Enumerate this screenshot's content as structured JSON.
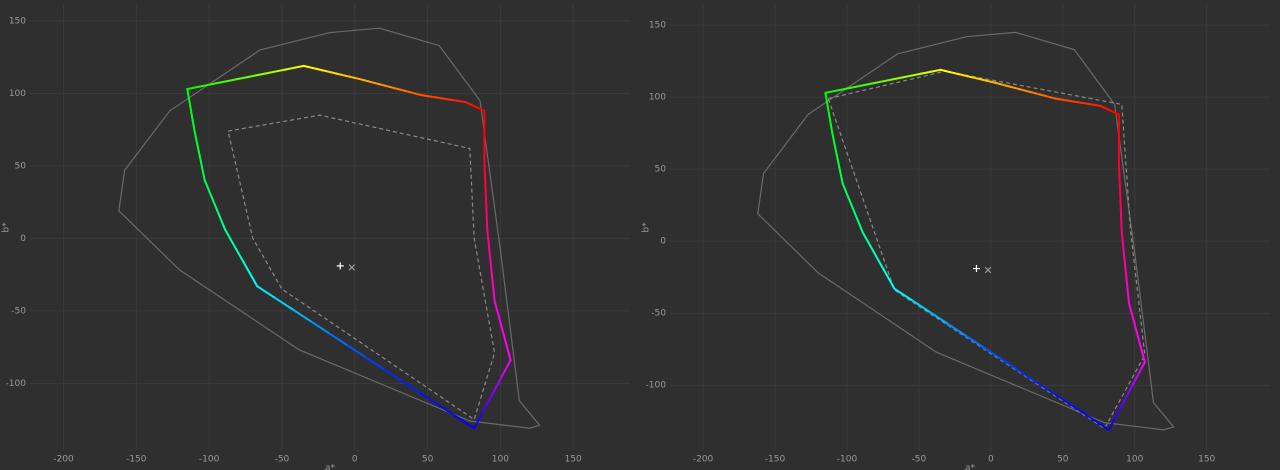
{
  "chart_data": [
    {
      "type": "line",
      "xlabel": "a*",
      "ylabel": "b*",
      "grid": true,
      "xlim": [
        -223,
        189
      ],
      "ylim": [
        -146,
        161
      ],
      "xticks": [
        -200,
        -150,
        -100,
        -50,
        0,
        50,
        100,
        150
      ],
      "yticks": [
        -100,
        -50,
        0,
        50,
        100,
        150
      ],
      "series": [
        {
          "style": "outline",
          "color": "#6a6a6a",
          "x": [
            17,
            58,
            86,
            100,
            113,
            127,
            120,
            79,
            -38,
            -120,
            -162,
            -158,
            -127,
            -65,
            -17,
            17
          ],
          "values": [
            145,
            133,
            95,
            -8,
            -112,
            -129,
            -131,
            -126,
            -77,
            -22,
            19,
            47,
            88,
            130,
            142,
            145
          ]
        },
        {
          "style": "dashed",
          "color": "#8a8a8a",
          "x": [
            -87,
            -24,
            79,
            82,
            96,
            82,
            -50,
            -70,
            -87
          ],
          "values": [
            74,
            85,
            62,
            0,
            -79,
            -125,
            -35,
            0,
            74
          ]
        },
        {
          "style": "hue",
          "x": [
            -115,
            -110,
            -103,
            -89,
            -67,
            82,
            107,
            96,
            91,
            89,
            89,
            76,
            45,
            3,
            -35,
            -115
          ],
          "values": [
            103,
            74,
            40,
            6,
            -33,
            -131,
            -84,
            -43,
            6,
            54,
            88,
            94,
            99,
            110,
            119,
            103
          ]
        },
        {
          "style": "plus",
          "color": "#ffffff",
          "x": [
            -10
          ],
          "values": [
            -19
          ]
        },
        {
          "style": "cross",
          "color": "#9a9a9a",
          "x": [
            -2
          ],
          "values": [
            -20
          ]
        }
      ]
    },
    {
      "type": "line",
      "xlabel": "a*",
      "ylabel": "b*",
      "grid": true,
      "xlim": [
        -223,
        194
      ],
      "ylim": [
        -145,
        164
      ],
      "xticks": [
        -200,
        -150,
        -100,
        -50,
        0,
        50,
        100,
        150
      ],
      "yticks": [
        -100,
        -50,
        0,
        50,
        100,
        150
      ],
      "series": [
        {
          "style": "outline",
          "color": "#6a6a6a",
          "x": [
            17,
            58,
            86,
            100,
            113,
            127,
            120,
            79,
            -38,
            -120,
            -162,
            -158,
            -127,
            -65,
            -17,
            17
          ],
          "values": [
            145,
            133,
            95,
            -8,
            -112,
            -129,
            -131,
            -126,
            -77,
            -22,
            19,
            47,
            88,
            130,
            142,
            145
          ]
        },
        {
          "style": "dashed",
          "color": "#8a8a8a",
          "x": [
            -113,
            -32,
            91,
            97,
            107,
            79,
            -67,
            -113
          ],
          "values": [
            99,
            118,
            95,
            8,
            -79,
            -130,
            -34,
            99
          ]
        },
        {
          "style": "hue",
          "x": [
            -115,
            -110,
            -103,
            -89,
            -67,
            82,
            107,
            96,
            91,
            89,
            89,
            76,
            45,
            3,
            -35,
            -115
          ],
          "values": [
            103,
            74,
            40,
            6,
            -33,
            -131,
            -84,
            -43,
            6,
            54,
            88,
            94,
            99,
            110,
            119,
            103
          ]
        },
        {
          "style": "plus",
          "color": "#ffffff",
          "x": [
            -10
          ],
          "values": [
            -19
          ]
        },
        {
          "style": "cross",
          "color": "#9a9a9a",
          "x": [
            -2
          ],
          "values": [
            -20
          ]
        }
      ]
    }
  ]
}
